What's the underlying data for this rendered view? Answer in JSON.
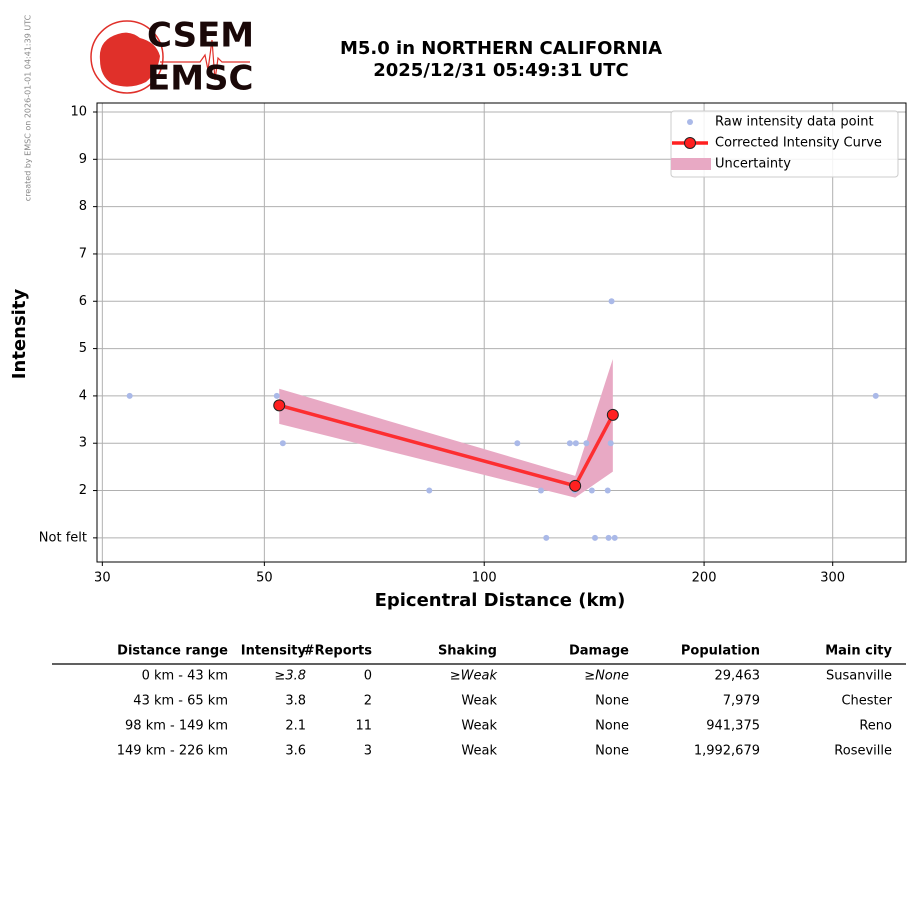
{
  "watermark": "created by EMSC on 2026-01-01 04:41:39 UTC",
  "logo": {
    "top": "CSEM",
    "bottom": "EMSC"
  },
  "chart_data": {
    "type": "line",
    "title": [
      "M5.0 in NORTHERN CALIFORNIA",
      "2025/12/31 05:49:31 UTC"
    ],
    "x_label": "Epicentral Distance (km)",
    "y_label": "Intensity",
    "xscale": "log",
    "grid": true,
    "legend": "upper right",
    "xlim": [
      29.5,
      378
    ],
    "xticks": [
      30,
      50,
      100,
      200,
      300
    ],
    "ylim": [
      0.49,
      10.19
    ],
    "yticks": [
      {
        "value": 1,
        "label": "Not felt"
      },
      2,
      3,
      4,
      5,
      6,
      7,
      8,
      9,
      10
    ],
    "series": [
      {
        "name": "Raw intensity data point",
        "type": "scatter",
        "color": "#aab9e8",
        "x": [
          32.7,
          52.0,
          53.0,
          84.1,
          111,
          119.6,
          121.6,
          131,
          133.5,
          133,
          138,
          140.4,
          141.8,
          147.6,
          148,
          149,
          149.4,
          150.9,
          343.6
        ],
        "values": [
          4,
          4,
          3,
          2,
          3,
          2,
          1,
          3,
          3,
          2,
          3,
          2,
          1,
          2,
          1,
          3,
          6,
          1,
          4
        ]
      },
      {
        "name": "Corrected Intensity Curve",
        "type": "line",
        "color": "#ff2020",
        "x": [
          52.4,
          133.2,
          150
        ],
        "values": [
          3.8,
          2.1,
          3.6
        ]
      },
      {
        "name": "Uncertainty",
        "type": "band",
        "color": "#e8a9c4",
        "x": [
          52.4,
          133.2,
          150
        ],
        "lower": [
          3.41,
          1.85,
          2.4
        ],
        "upper": [
          4.15,
          2.31,
          4.78
        ]
      }
    ]
  },
  "table": {
    "columns": [
      "Distance range",
      "Intensity",
      "#Reports",
      "Shaking",
      "Damage",
      "Population",
      "Main city"
    ],
    "rows": [
      [
        "0 km -   43 km",
        "≥3.8",
        "0",
        "≥Weak",
        "≥None",
        "29,463",
        "Susanville"
      ],
      [
        "43 km -   65 km",
        "3.8",
        "2",
        "Weak",
        "None",
        "7,979",
        "Chester"
      ],
      [
        "98 km -  149 km",
        "2.1",
        "11",
        "Weak",
        "None",
        "941,375",
        "Reno"
      ],
      [
        "149 km -  226 km",
        "3.6",
        "3",
        "Weak",
        "None",
        "1,992,679",
        "Roseville"
      ]
    ]
  }
}
